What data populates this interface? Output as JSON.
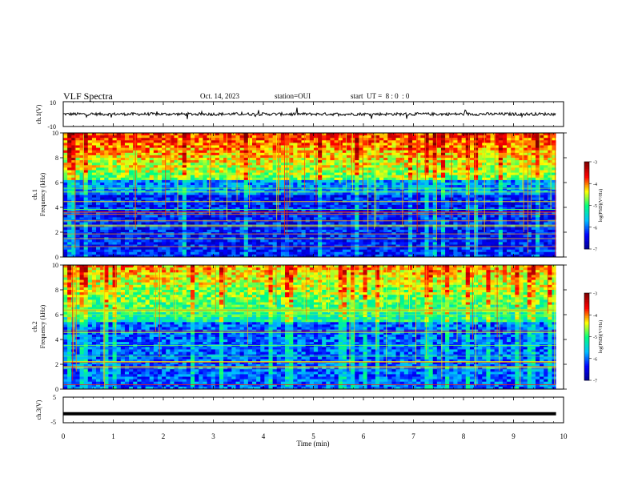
{
  "header": {
    "title": "VLF Spectra",
    "date": "Oct. 14, 2023",
    "station": "station=OUI",
    "start_ut": "start  UT =  8 : 0  : 0"
  },
  "chart_data": [
    {
      "type": "line",
      "panel": "ch1-waveform",
      "ylabel": "ch.1(V)",
      "yticks": [
        "10",
        "-10"
      ],
      "ylim": [
        -10,
        10
      ],
      "series": [
        {
          "values_description_free": true,
          "color": "#000000"
        }
      ],
      "baseline_v": 0
    },
    {
      "type": "heatmap",
      "panel": "ch1-spectrogram",
      "ylabel_top": "ch.1",
      "ylabel": "Frequency (kHz)",
      "yticks": [
        "0",
        "2",
        "4",
        "6",
        "8",
        "10"
      ],
      "ylim": [
        0,
        10
      ],
      "xlim": [
        0,
        10
      ],
      "colorbar": {
        "label": "log(PSD)(V²/Hz)",
        "ticks": [
          "-3",
          "-4",
          "-5",
          "-6",
          "-7"
        ],
        "range": [
          -7,
          -3
        ]
      }
    },
    {
      "type": "heatmap",
      "panel": "ch2-spectrogram",
      "ylabel_top": "ch.2",
      "ylabel": "Frequency (kHz)",
      "yticks": [
        "0",
        "2",
        "4",
        "6",
        "8",
        "10"
      ],
      "ylim": [
        0,
        10
      ],
      "xlim": [
        0,
        10
      ],
      "colorbar": {
        "label": "log(PSD)(V²/Hz)",
        "ticks": [
          "-3",
          "-4",
          "-5",
          "-6",
          "-7"
        ],
        "range": [
          -7,
          -3
        ]
      }
    },
    {
      "type": "line",
      "panel": "ch3-waveform",
      "ylabel": "ch.3(V)",
      "yticks": [
        "5",
        "-5"
      ],
      "ylim": [
        -5,
        5
      ],
      "series": [
        {
          "color": "#000000",
          "constant_value": -1.5
        }
      ]
    }
  ],
  "xaxis": {
    "label": "Time  (min)",
    "ticks": [
      "0",
      "1",
      "2",
      "3",
      "4",
      "5",
      "6",
      "7",
      "8",
      "9",
      "10"
    ],
    "xlim": [
      0,
      10
    ],
    "data_end_min": 9.85
  },
  "colors": {
    "colormap": [
      "#00008b",
      "#0000ff",
      "#00bfff",
      "#00ff80",
      "#ffff00",
      "#ff0000",
      "#800000"
    ]
  }
}
